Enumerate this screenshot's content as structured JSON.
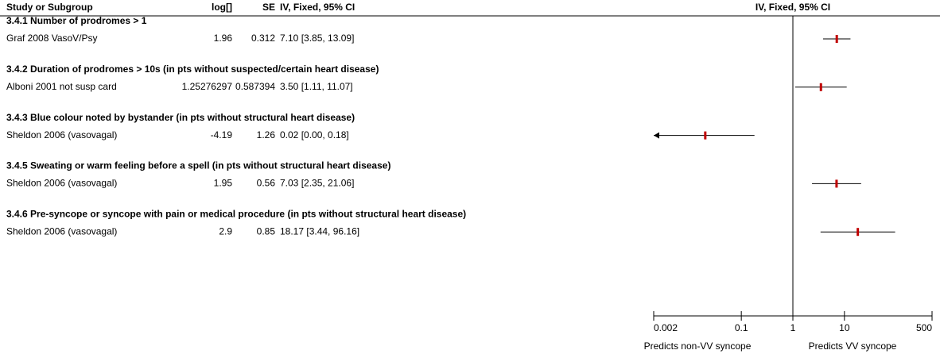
{
  "chart_data": {
    "type": "forest",
    "columns": [
      "Study or Subgroup",
      "log[]",
      "SE",
      "IV, Fixed, 95% CI"
    ],
    "plot_title": "IV, Fixed, 95% CI",
    "xscale": "log",
    "xlim": [
      0.002,
      500
    ],
    "xticks": [
      0.002,
      0.1,
      1,
      10,
      500
    ],
    "xlabel_left": "Predicts non-VV syncope",
    "xlabel_right": "Predicts VV syncope",
    "color": "#c00000",
    "groups": [
      {
        "name": "3.4.1 Number of prodromes > 1",
        "studies": [
          {
            "name": "Graf 2008 VasoV/Psy",
            "log": 1.96,
            "se": 0.312,
            "ci_label": "7.10 [3.85, 13.09]",
            "or": 7.1,
            "lower": 3.85,
            "upper": 13.09
          }
        ]
      },
      {
        "name": "3.4.2 Duration of prodromes > 10s (in pts without suspected/certain heart disease)",
        "studies": [
          {
            "name": "Alboni 2001 not susp card",
            "log": 1.25276297,
            "se": 0.587394,
            "ci_label": "3.50 [1.11, 11.07]",
            "or": 3.5,
            "lower": 1.11,
            "upper": 11.07
          }
        ]
      },
      {
        "name": "3.4.3 Blue colour noted by bystander (in pts without structural heart disease)",
        "studies": [
          {
            "name": "Sheldon 2006 (vasovagal)",
            "log": -4.19,
            "se": 1.26,
            "ci_label": "0.02 [0.00, 0.18]",
            "or": 0.02,
            "lower": 0.0013,
            "upper": 0.18
          }
        ]
      },
      {
        "name": "3.4.5 Sweating or warm feeling before a spell (in pts without structural heart disease)",
        "studies": [
          {
            "name": "Sheldon 2006 (vasovagal)",
            "log": 1.95,
            "se": 0.56,
            "ci_label": "7.03 [2.35, 21.06]",
            "or": 7.03,
            "lower": 2.35,
            "upper": 21.06
          }
        ]
      },
      {
        "name": "3.4.6 Pre-syncope or syncope with pain or medical procedure (in pts without structural heart disease)",
        "studies": [
          {
            "name": "Sheldon 2006 (vasovagal)",
            "log": 2.9,
            "se": 0.85,
            "ci_label": "18.17 [3.44, 96.16]",
            "or": 18.17,
            "lower": 3.44,
            "upper": 96.16
          }
        ]
      }
    ]
  }
}
